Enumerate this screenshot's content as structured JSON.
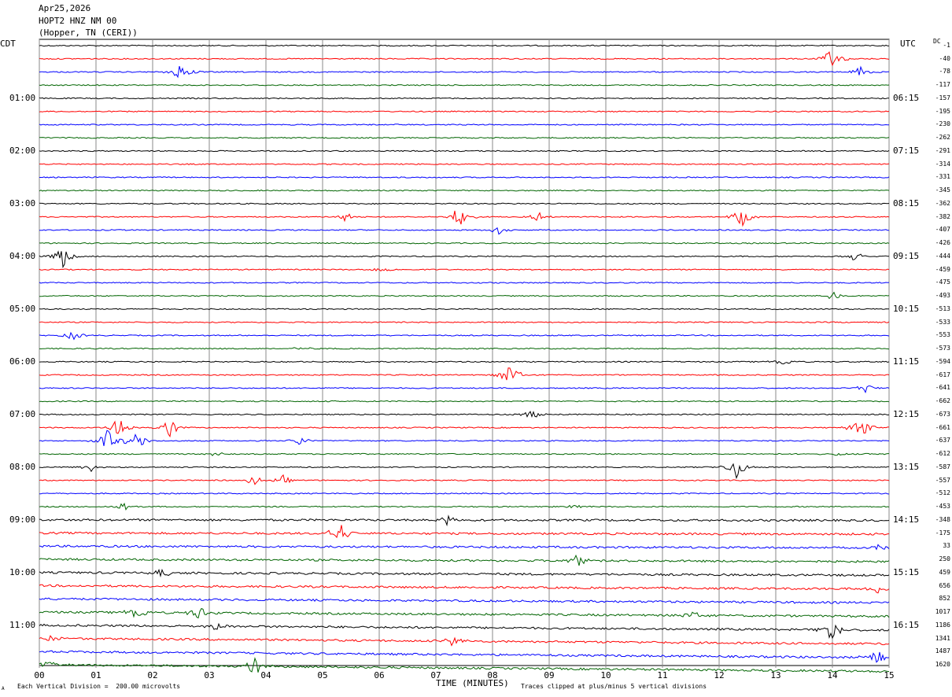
{
  "header": {
    "date": "Apr25,2026",
    "station": "HOPT2 HNZ NM 00",
    "location": "(Hopper, TN (CERI))"
  },
  "left_zone": "CDT",
  "right_zone": "UTC",
  "dc_label": "DC",
  "footer": {
    "xlabel": "TIME (MINUTES)",
    "scale_note": "Each Vertical Division =  200.00 microvolts",
    "clip_note": "Traces clipped at plus/minus 5 vertical divisions",
    "corner_mark": "A"
  },
  "trace_colors": [
    "#000000",
    "#ff0000",
    "#0000ff",
    "#006400"
  ],
  "chart_data": {
    "type": "line",
    "x_ticks": [
      "00",
      "01",
      "02",
      "03",
      "04",
      "05",
      "06",
      "07",
      "08",
      "09",
      "10",
      "11",
      "12",
      "13",
      "14",
      "15"
    ],
    "xlim": [
      0,
      15
    ],
    "left_hour_labels": [
      "01:00",
      "02:00",
      "03:00",
      "04:00",
      "05:00",
      "06:00",
      "07:00",
      "08:00",
      "09:00",
      "10:00",
      "11:00"
    ],
    "right_hour_labels": [
      "06:15",
      "07:15",
      "08:15",
      "09:15",
      "10:15",
      "11:15",
      "12:15",
      "13:15",
      "14:15",
      "15:15",
      "16:15"
    ],
    "dc_offsets": [
      "-1",
      "-40",
      "-78",
      "-117",
      "-157",
      "-195",
      "-230",
      "-262",
      "-291",
      "-314",
      "-331",
      "-345",
      "-362",
      "-382",
      "-407",
      "-426",
      "-444",
      "-459",
      "-475",
      "-493",
      "-513",
      "-533",
      "-553",
      "-573",
      "-594",
      "-617",
      "-641",
      "-662",
      "-673",
      "-661",
      "-637",
      "-612",
      "-587",
      "-557",
      "-512",
      "-453",
      "-348",
      "-175",
      "33",
      "250",
      "459",
      "656",
      "852",
      "1017",
      "1186",
      "1341",
      "1487",
      "1620"
    ],
    "traces_count": 48,
    "events": [
      {
        "trace": 1,
        "minute": 14.0,
        "amp": 5
      },
      {
        "trace": 2,
        "minute": 2.5,
        "amp": 5
      },
      {
        "trace": 2,
        "minute": 14.5,
        "amp": 2
      },
      {
        "trace": 13,
        "minute": 5.4,
        "amp": 2
      },
      {
        "trace": 13,
        "minute": 7.4,
        "amp": 5
      },
      {
        "trace": 13,
        "minute": 8.8,
        "amp": 2
      },
      {
        "trace": 13,
        "minute": 12.4,
        "amp": 4
      },
      {
        "trace": 14,
        "minute": 8.1,
        "amp": 2
      },
      {
        "trace": 16,
        "minute": 0.4,
        "amp": 5
      },
      {
        "trace": 16,
        "minute": 14.4,
        "amp": 2
      },
      {
        "trace": 17,
        "minute": 6.1,
        "amp": 2
      },
      {
        "trace": 19,
        "minute": 14.0,
        "amp": 2
      },
      {
        "trace": 22,
        "minute": 0.6,
        "amp": 2
      },
      {
        "trace": 23,
        "minute": 4.6,
        "amp": 1
      },
      {
        "trace": 24,
        "minute": 13.1,
        "amp": 2
      },
      {
        "trace": 25,
        "minute": 8.3,
        "amp": 5
      },
      {
        "trace": 26,
        "minute": 14.6,
        "amp": 2
      },
      {
        "trace": 28,
        "minute": 8.7,
        "amp": 2
      },
      {
        "trace": 29,
        "minute": 1.4,
        "amp": 5
      },
      {
        "trace": 29,
        "minute": 2.3,
        "amp": 4
      },
      {
        "trace": 29,
        "minute": 14.5,
        "amp": 5
      },
      {
        "trace": 30,
        "minute": 1.2,
        "amp": 5
      },
      {
        "trace": 30,
        "minute": 1.7,
        "amp": 5
      },
      {
        "trace": 30,
        "minute": 4.6,
        "amp": 2
      },
      {
        "trace": 31,
        "minute": 3.1,
        "amp": 1
      },
      {
        "trace": 31,
        "minute": 14.1,
        "amp": 1
      },
      {
        "trace": 32,
        "minute": 0.9,
        "amp": 2
      },
      {
        "trace": 32,
        "minute": 12.3,
        "amp": 5
      },
      {
        "trace": 33,
        "minute": 3.8,
        "amp": 2
      },
      {
        "trace": 33,
        "minute": 4.3,
        "amp": 2
      },
      {
        "trace": 35,
        "minute": 1.5,
        "amp": 2
      },
      {
        "trace": 35,
        "minute": 9.4,
        "amp": 1
      },
      {
        "trace": 36,
        "minute": 7.2,
        "amp": 2
      },
      {
        "trace": 37,
        "minute": 5.3,
        "amp": 5
      },
      {
        "trace": 38,
        "minute": 14.8,
        "amp": 2
      },
      {
        "trace": 39,
        "minute": 9.5,
        "amp": 3
      },
      {
        "trace": 40,
        "minute": 2.2,
        "amp": 2
      },
      {
        "trace": 41,
        "minute": 14.8,
        "amp": 2
      },
      {
        "trace": 43,
        "minute": 1.7,
        "amp": 4
      },
      {
        "trace": 43,
        "minute": 2.8,
        "amp": 3
      },
      {
        "trace": 43,
        "minute": 11.5,
        "amp": 2
      },
      {
        "trace": 44,
        "minute": 14.0,
        "amp": 5
      },
      {
        "trace": 44,
        "minute": 3.1,
        "amp": 2
      },
      {
        "trace": 45,
        "minute": 0.2,
        "amp": 2
      },
      {
        "trace": 45,
        "minute": 7.3,
        "amp": 2
      },
      {
        "trace": 46,
        "minute": 14.8,
        "amp": 4
      },
      {
        "trace": 47,
        "minute": 3.8,
        "amp": 4
      },
      {
        "trace": 47,
        "minute": 0.2,
        "amp": 2
      }
    ]
  }
}
